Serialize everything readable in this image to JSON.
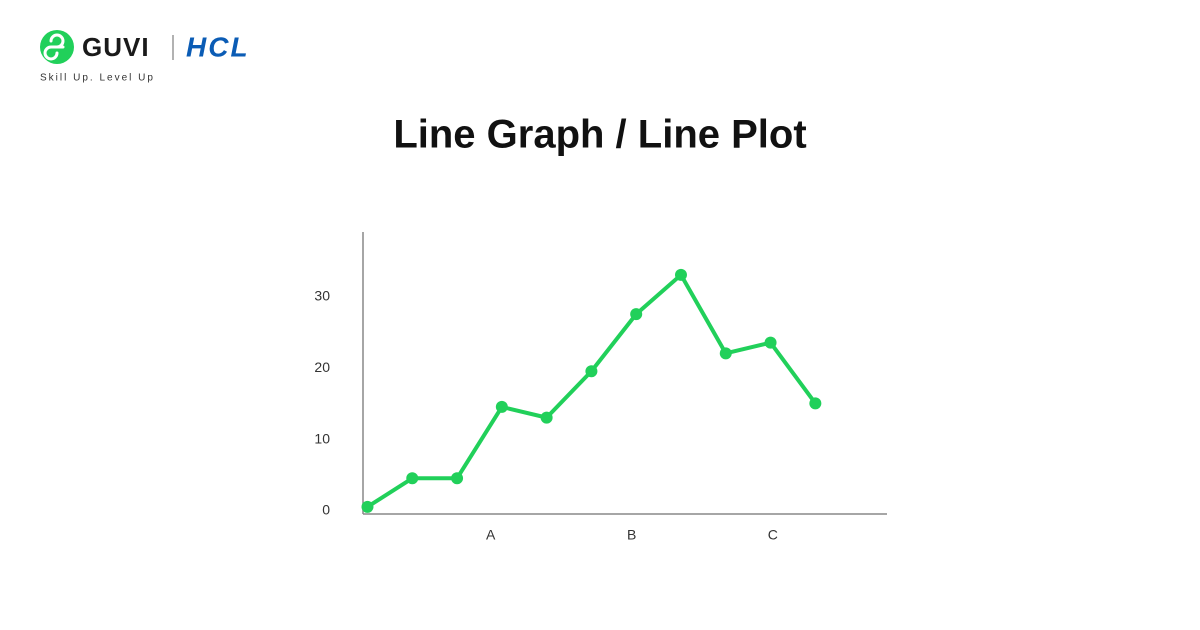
{
  "header": {
    "brand": "GUVI",
    "partner": "HCL",
    "tagline": "Skill Up. Level Up"
  },
  "chart_data": {
    "type": "line",
    "title": "Line Graph / Line Plot",
    "x": [
      0,
      1,
      2,
      3,
      4,
      5,
      6,
      7,
      8,
      9,
      10
    ],
    "values": [
      1,
      5,
      5,
      15,
      13.5,
      20,
      28,
      33.5,
      22.5,
      24,
      15.5
    ],
    "color": "#21d05a",
    "xlim": [
      -0.1,
      11.6
    ],
    "xticks": [
      {
        "value": 2.75,
        "label": "A"
      },
      {
        "value": 5.9,
        "label": "B"
      },
      {
        "value": 9.05,
        "label": "C"
      }
    ],
    "ylim": [
      0,
      39.5
    ],
    "yticks": [
      0,
      10,
      20,
      30
    ],
    "grid": false
  }
}
